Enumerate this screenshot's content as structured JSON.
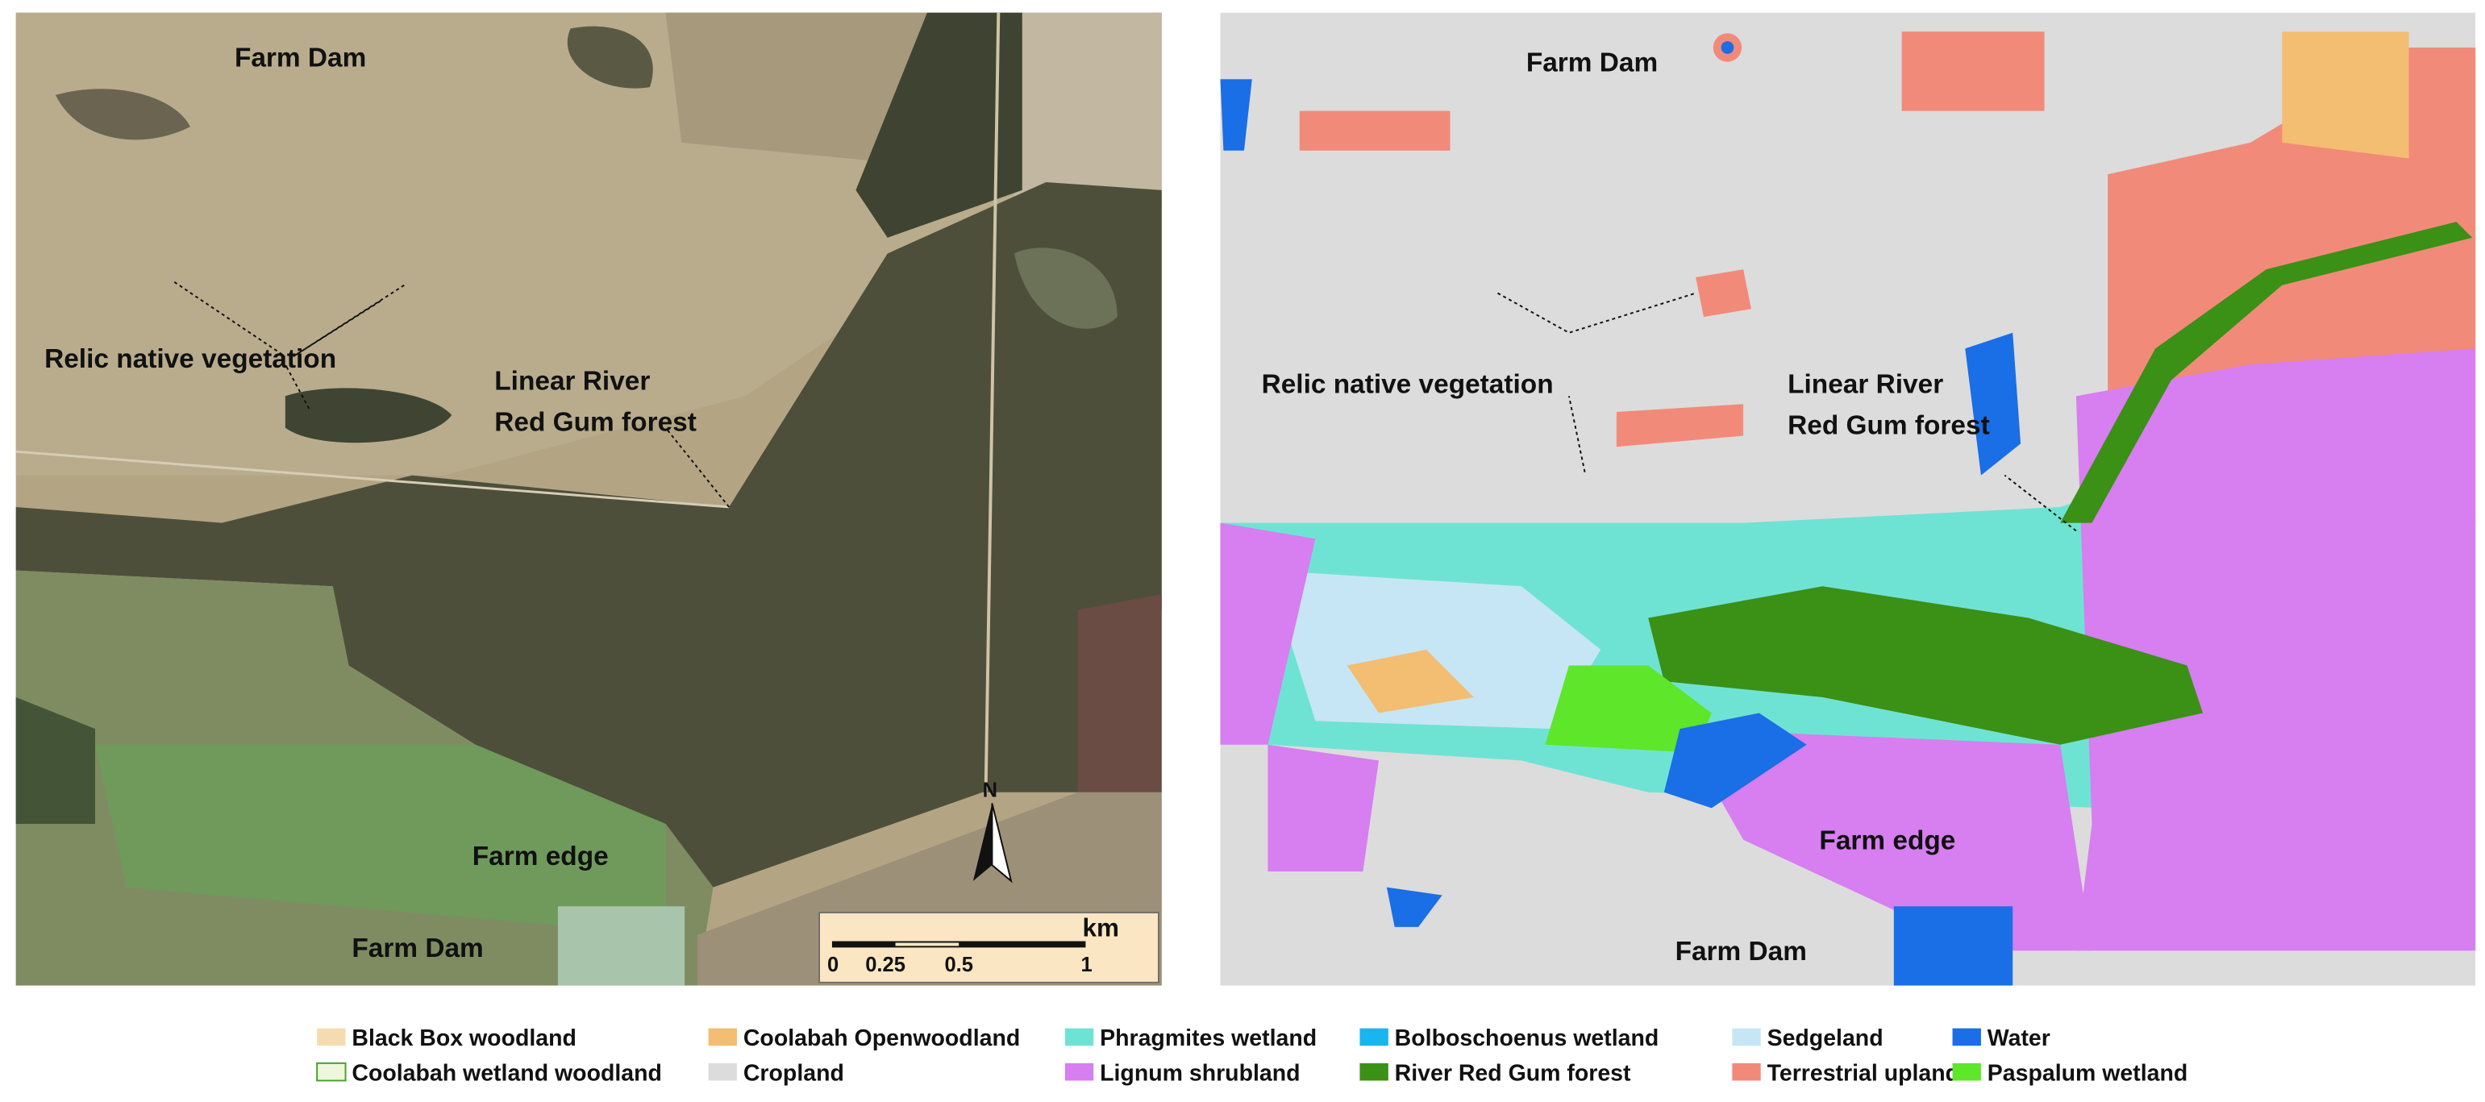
{
  "left_map": {
    "labels": {
      "farm_dam_top": "Farm Dam",
      "relic": "Relic native vegetation",
      "linear": [
        "Linear River",
        "Red Gum forest"
      ],
      "farm_edge": "Farm edge",
      "farm_dam_bottom": "Farm Dam"
    },
    "scale_bar": {
      "unit": "km",
      "ticks": [
        "0",
        "0.25",
        "0.5",
        "1"
      ]
    },
    "north": "N"
  },
  "right_map": {
    "labels": {
      "farm_dam_top": "Farm Dam",
      "relic": "Relic native vegetation",
      "linear": [
        "Linear River",
        "Red Gum forest"
      ],
      "farm_edge": "Farm edge",
      "farm_dam_bottom": "Farm Dam"
    }
  },
  "legend": [
    {
      "name": "Black Box woodland",
      "color": "#f5dcb0"
    },
    {
      "name": "Coolabah Openwoodland",
      "color": "#f3bd72"
    },
    {
      "name": "Phragmites wetland",
      "color": "#6fe3d3"
    },
    {
      "name": "Bolboschoenus wetland",
      "color": "#19b5ef"
    },
    {
      "name": "Sedgeland",
      "color": "#c6e6f5"
    },
    {
      "name": "Water",
      "color": "#1a6ee6"
    },
    {
      "name": "Coolabah wetland woodland",
      "color": "#eef7dc"
    },
    {
      "name": "Cropland",
      "color": "#dcdcdc"
    },
    {
      "name": "Lignum shrubland",
      "color": "#d77ef0"
    },
    {
      "name": "River Red Gum forest",
      "color": "#3b9016"
    },
    {
      "name": "Terrestrial upland",
      "color": "#f28a7a"
    },
    {
      "name": "Paspalum wetland",
      "color": "#5ee62a"
    }
  ]
}
